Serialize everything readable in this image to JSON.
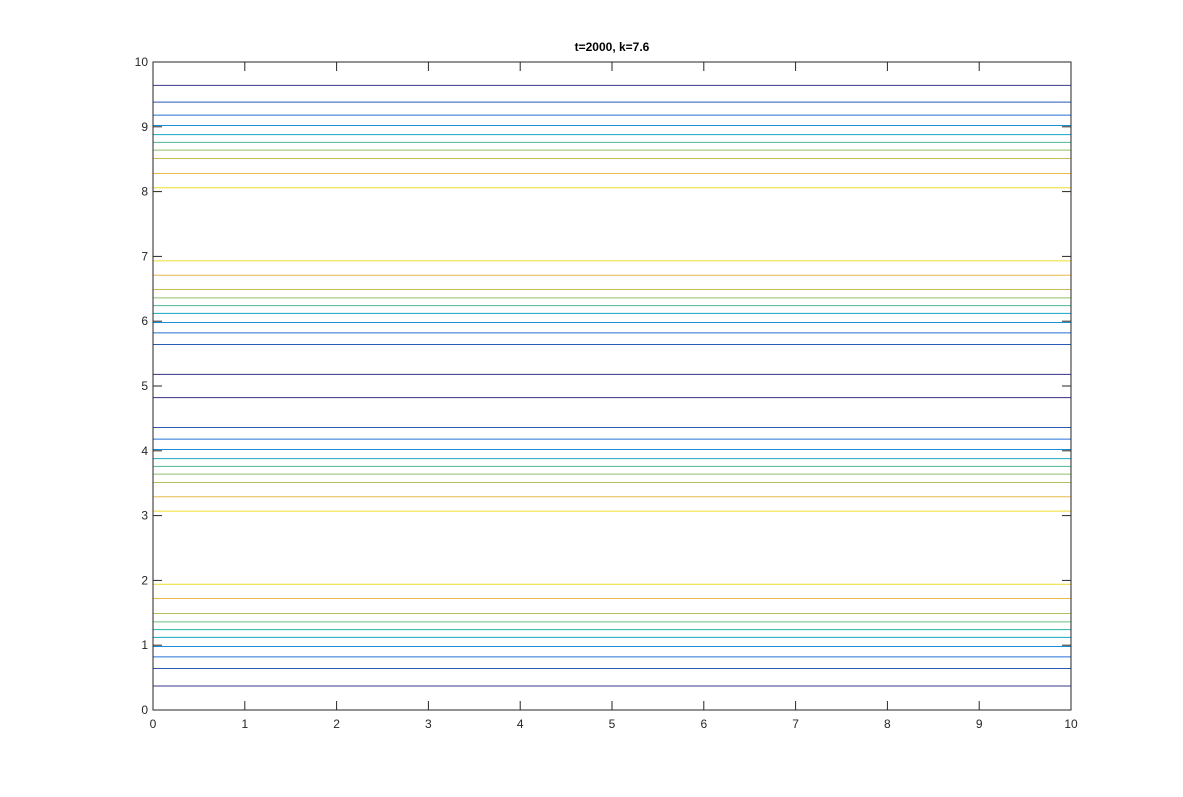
{
  "chart_data": {
    "type": "contour",
    "title": "t=2000, k=7.6",
    "xlabel": "",
    "ylabel": "",
    "xlim": [
      0,
      10
    ],
    "ylim": [
      0,
      10
    ],
    "x_ticks": [
      "0",
      "1",
      "2",
      "3",
      "4",
      "5",
      "6",
      "7",
      "8",
      "9",
      "10"
    ],
    "y_ticks": [
      "0",
      "1",
      "2",
      "3",
      "4",
      "5",
      "6",
      "7",
      "8",
      "9",
      "10"
    ],
    "grid": false,
    "legend": "none",
    "contour_levels": [
      {
        "y": 0.37,
        "color": "#3b3a8f"
      },
      {
        "y": 0.64,
        "color": "#2a58b5"
      },
      {
        "y": 0.82,
        "color": "#2472d6"
      },
      {
        "y": 0.98,
        "color": "#1a8fd6"
      },
      {
        "y": 1.12,
        "color": "#17a4c8"
      },
      {
        "y": 1.24,
        "color": "#28b3a8"
      },
      {
        "y": 1.36,
        "color": "#6cbf7e"
      },
      {
        "y": 1.49,
        "color": "#b8c05e"
      },
      {
        "y": 1.72,
        "color": "#e9bb4a"
      },
      {
        "y": 1.94,
        "color": "#f2dc2c"
      },
      {
        "y": 3.07,
        "color": "#f2dc2c"
      },
      {
        "y": 3.29,
        "color": "#e9bb4a"
      },
      {
        "y": 3.51,
        "color": "#b8c05e"
      },
      {
        "y": 3.64,
        "color": "#8cc06c"
      },
      {
        "y": 3.76,
        "color": "#4db894"
      },
      {
        "y": 3.88,
        "color": "#20a9b8"
      },
      {
        "y": 4.02,
        "color": "#1a8fd6"
      },
      {
        "y": 4.18,
        "color": "#2472d6"
      },
      {
        "y": 4.36,
        "color": "#2a58b5"
      },
      {
        "y": 4.82,
        "color": "#34308a"
      },
      {
        "y": 5.18,
        "color": "#34308a"
      },
      {
        "y": 5.64,
        "color": "#2a58b5"
      },
      {
        "y": 5.82,
        "color": "#2472d6"
      },
      {
        "y": 5.98,
        "color": "#1a8fd6"
      },
      {
        "y": 6.12,
        "color": "#17a4c8"
      },
      {
        "y": 6.24,
        "color": "#4db894"
      },
      {
        "y": 6.36,
        "color": "#8cc06c"
      },
      {
        "y": 6.49,
        "color": "#c9bd56"
      },
      {
        "y": 6.71,
        "color": "#e9bb4a"
      },
      {
        "y": 6.93,
        "color": "#f2dc2c"
      },
      {
        "y": 8.06,
        "color": "#f2dc2c"
      },
      {
        "y": 8.28,
        "color": "#e9bb4a"
      },
      {
        "y": 8.51,
        "color": "#c9bd56"
      },
      {
        "y": 8.64,
        "color": "#8cc06c"
      },
      {
        "y": 8.76,
        "color": "#4db894"
      },
      {
        "y": 8.88,
        "color": "#17a4c8"
      },
      {
        "y": 9.02,
        "color": "#1a8fd6"
      },
      {
        "y": 9.18,
        "color": "#2472d6"
      },
      {
        "y": 9.38,
        "color": "#2a58b5"
      },
      {
        "y": 9.64,
        "color": "#3b3a8f"
      }
    ]
  }
}
